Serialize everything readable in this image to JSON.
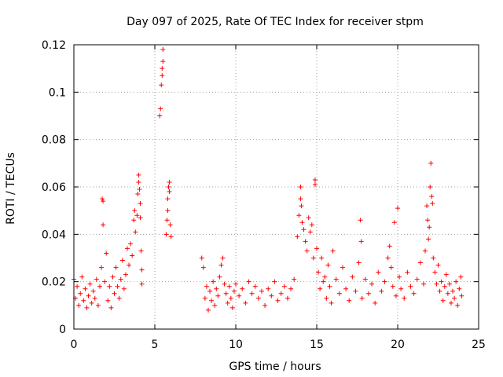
{
  "chart_data": {
    "type": "scatter",
    "title": "Day 097 of 2025, Rate Of TEC Index for receiver stpm",
    "xlabel": "GPS time / hours",
    "ylabel": "ROTI / TECUs",
    "xlim": [
      0,
      25
    ],
    "ylim": [
      0,
      0.12
    ],
    "xticks": [
      0,
      5,
      10,
      15,
      20,
      25
    ],
    "yticks": [
      0,
      0.02,
      0.04,
      0.06,
      0.08,
      0.1,
      0.12
    ],
    "xtick_labels": [
      "0",
      "5",
      "10",
      "15",
      "20",
      "25"
    ],
    "ytick_labels": [
      "0",
      "0.02",
      "0.04",
      "0.06",
      "0.08",
      "0.1",
      "0.12"
    ],
    "grid": true,
    "marker": "+",
    "color": "#ff0000",
    "series": [
      {
        "name": "ROTI",
        "points": [
          [
            0.0,
            0.021
          ],
          [
            0.1,
            0.013
          ],
          [
            0.2,
            0.018
          ],
          [
            0.3,
            0.01
          ],
          [
            0.4,
            0.015
          ],
          [
            0.5,
            0.022
          ],
          [
            0.6,
            0.012
          ],
          [
            0.7,
            0.017
          ],
          [
            0.8,
            0.009
          ],
          [
            0.9,
            0.014
          ],
          [
            1.0,
            0.019
          ],
          [
            1.1,
            0.011
          ],
          [
            1.2,
            0.016
          ],
          [
            1.3,
            0.013
          ],
          [
            1.4,
            0.021
          ],
          [
            1.5,
            0.01
          ],
          [
            1.6,
            0.018
          ],
          [
            1.7,
            0.026
          ],
          [
            1.75,
            0.055
          ],
          [
            1.8,
            0.054
          ],
          [
            1.8,
            0.044
          ],
          [
            1.9,
            0.02
          ],
          [
            2.0,
            0.032
          ],
          [
            2.1,
            0.012
          ],
          [
            2.2,
            0.018
          ],
          [
            2.3,
            0.009
          ],
          [
            2.4,
            0.022
          ],
          [
            2.5,
            0.015
          ],
          [
            2.6,
            0.026
          ],
          [
            2.7,
            0.018
          ],
          [
            2.8,
            0.013
          ],
          [
            2.9,
            0.021
          ],
          [
            3.0,
            0.029
          ],
          [
            3.1,
            0.017
          ],
          [
            3.2,
            0.023
          ],
          [
            3.3,
            0.034
          ],
          [
            3.4,
            0.027
          ],
          [
            3.5,
            0.036
          ],
          [
            3.6,
            0.031
          ],
          [
            3.7,
            0.046
          ],
          [
            3.75,
            0.05
          ],
          [
            3.8,
            0.041
          ],
          [
            3.9,
            0.048
          ],
          [
            3.95,
            0.057
          ],
          [
            4.0,
            0.065
          ],
          [
            4.0,
            0.062
          ],
          [
            4.05,
            0.059
          ],
          [
            4.1,
            0.053
          ],
          [
            4.1,
            0.047
          ],
          [
            4.15,
            0.033
          ],
          [
            4.2,
            0.025
          ],
          [
            4.2,
            0.019
          ],
          [
            5.3,
            0.09
          ],
          [
            5.35,
            0.093
          ],
          [
            5.4,
            0.103
          ],
          [
            5.45,
            0.107
          ],
          [
            5.45,
            0.11
          ],
          [
            5.5,
            0.113
          ],
          [
            5.5,
            0.118
          ],
          [
            5.7,
            0.04
          ],
          [
            5.75,
            0.046
          ],
          [
            5.8,
            0.055
          ],
          [
            5.8,
            0.05
          ],
          [
            5.85,
            0.06
          ],
          [
            5.9,
            0.058
          ],
          [
            5.9,
            0.062
          ],
          [
            5.95,
            0.044
          ],
          [
            6.0,
            0.039
          ],
          [
            7.9,
            0.03
          ],
          [
            8.0,
            0.026
          ],
          [
            8.1,
            0.013
          ],
          [
            8.2,
            0.018
          ],
          [
            8.3,
            0.008
          ],
          [
            8.4,
            0.016
          ],
          [
            8.5,
            0.012
          ],
          [
            8.6,
            0.02
          ],
          [
            8.7,
            0.01
          ],
          [
            8.8,
            0.017
          ],
          [
            8.9,
            0.014
          ],
          [
            9.0,
            0.022
          ],
          [
            9.1,
            0.027
          ],
          [
            9.2,
            0.03
          ],
          [
            9.3,
            0.019
          ],
          [
            9.4,
            0.015
          ],
          [
            9.5,
            0.011
          ],
          [
            9.6,
            0.018
          ],
          [
            9.7,
            0.013
          ],
          [
            9.8,
            0.009
          ],
          [
            9.9,
            0.016
          ],
          [
            10.0,
            0.019
          ],
          [
            10.2,
            0.014
          ],
          [
            10.4,
            0.017
          ],
          [
            10.6,
            0.011
          ],
          [
            10.8,
            0.02
          ],
          [
            11.0,
            0.015
          ],
          [
            11.2,
            0.018
          ],
          [
            11.4,
            0.013
          ],
          [
            11.6,
            0.016
          ],
          [
            11.8,
            0.01
          ],
          [
            12.0,
            0.017
          ],
          [
            12.2,
            0.014
          ],
          [
            12.4,
            0.02
          ],
          [
            12.6,
            0.012
          ],
          [
            12.8,
            0.015
          ],
          [
            13.0,
            0.018
          ],
          [
            13.2,
            0.013
          ],
          [
            13.4,
            0.017
          ],
          [
            13.6,
            0.021
          ],
          [
            13.8,
            0.039
          ],
          [
            13.9,
            0.048
          ],
          [
            14.0,
            0.06
          ],
          [
            14.0,
            0.055
          ],
          [
            14.05,
            0.052
          ],
          [
            14.1,
            0.045
          ],
          [
            14.2,
            0.042
          ],
          [
            14.3,
            0.037
          ],
          [
            14.4,
            0.033
          ],
          [
            14.5,
            0.047
          ],
          [
            14.6,
            0.041
          ],
          [
            14.7,
            0.044
          ],
          [
            14.8,
            0.03
          ],
          [
            14.9,
            0.063
          ],
          [
            14.9,
            0.061
          ],
          [
            15.0,
            0.034
          ],
          [
            15.1,
            0.024
          ],
          [
            15.2,
            0.017
          ],
          [
            15.3,
            0.03
          ],
          [
            15.4,
            0.02
          ],
          [
            15.5,
            0.022
          ],
          [
            15.6,
            0.013
          ],
          [
            15.7,
            0.027
          ],
          [
            15.8,
            0.018
          ],
          [
            15.9,
            0.011
          ],
          [
            16.0,
            0.033
          ],
          [
            16.2,
            0.021
          ],
          [
            16.4,
            0.015
          ],
          [
            16.6,
            0.026
          ],
          [
            16.8,
            0.017
          ],
          [
            17.0,
            0.012
          ],
          [
            17.2,
            0.022
          ],
          [
            17.4,
            0.016
          ],
          [
            17.6,
            0.028
          ],
          [
            17.7,
            0.046
          ],
          [
            17.75,
            0.037
          ],
          [
            17.8,
            0.013
          ],
          [
            18.0,
            0.021
          ],
          [
            18.2,
            0.015
          ],
          [
            18.4,
            0.019
          ],
          [
            18.6,
            0.011
          ],
          [
            18.8,
            0.024
          ],
          [
            19.0,
            0.016
          ],
          [
            19.2,
            0.02
          ],
          [
            19.4,
            0.03
          ],
          [
            19.5,
            0.035
          ],
          [
            19.6,
            0.026
          ],
          [
            19.7,
            0.018
          ],
          [
            19.8,
            0.045
          ],
          [
            19.9,
            0.014
          ],
          [
            20.0,
            0.051
          ],
          [
            20.1,
            0.022
          ],
          [
            20.2,
            0.017
          ],
          [
            20.4,
            0.013
          ],
          [
            20.6,
            0.024
          ],
          [
            20.8,
            0.018
          ],
          [
            21.0,
            0.015
          ],
          [
            21.2,
            0.021
          ],
          [
            21.4,
            0.028
          ],
          [
            21.6,
            0.019
          ],
          [
            21.7,
            0.033
          ],
          [
            21.8,
            0.052
          ],
          [
            21.85,
            0.046
          ],
          [
            21.9,
            0.038
          ],
          [
            21.95,
            0.043
          ],
          [
            22.0,
            0.06
          ],
          [
            22.05,
            0.07
          ],
          [
            22.1,
            0.056
          ],
          [
            22.15,
            0.053
          ],
          [
            22.2,
            0.03
          ],
          [
            22.3,
            0.024
          ],
          [
            22.4,
            0.019
          ],
          [
            22.5,
            0.027
          ],
          [
            22.6,
            0.016
          ],
          [
            22.7,
            0.02
          ],
          [
            22.8,
            0.012
          ],
          [
            22.9,
            0.018
          ],
          [
            23.0,
            0.023
          ],
          [
            23.1,
            0.015
          ],
          [
            23.2,
            0.019
          ],
          [
            23.3,
            0.011
          ],
          [
            23.4,
            0.016
          ],
          [
            23.5,
            0.013
          ],
          [
            23.6,
            0.02
          ],
          [
            23.7,
            0.01
          ],
          [
            23.8,
            0.017
          ],
          [
            23.9,
            0.022
          ],
          [
            23.95,
            0.014
          ]
        ]
      }
    ]
  }
}
